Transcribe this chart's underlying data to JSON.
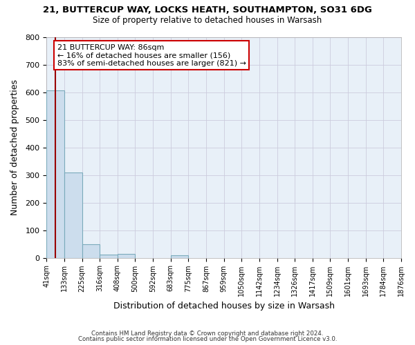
{
  "title_line1": "21, BUTTERCUP WAY, LOCKS HEATH, SOUTHAMPTON, SO31 6DG",
  "title_line2": "Size of property relative to detached houses in Warsash",
  "xlabel": "Distribution of detached houses by size in Warsash",
  "ylabel": "Number of detached properties",
  "bin_edges": [
    41,
    133,
    225,
    316,
    408,
    500,
    592,
    683,
    775,
    867,
    959,
    1050,
    1142,
    1234,
    1326,
    1417,
    1509,
    1601,
    1693,
    1784,
    1876
  ],
  "bin_labels": [
    "41sqm",
    "133sqm",
    "225sqm",
    "316sqm",
    "408sqm",
    "500sqm",
    "592sqm",
    "683sqm",
    "775sqm",
    "867sqm",
    "959sqm",
    "1050sqm",
    "1142sqm",
    "1234sqm",
    "1326sqm",
    "1417sqm",
    "1509sqm",
    "1601sqm",
    "1693sqm",
    "1784sqm",
    "1876sqm"
  ],
  "bar_heights": [
    607,
    310,
    48,
    12,
    13,
    0,
    0,
    8,
    0,
    0,
    0,
    0,
    0,
    0,
    0,
    0,
    0,
    0,
    0,
    0
  ],
  "bar_color": "#ccdded",
  "bar_edge_color": "#7aaabb",
  "property_size": 86,
  "vline_color": "#990000",
  "annotation_text": "21 BUTTERCUP WAY: 86sqm\n← 16% of detached houses are smaller (156)\n83% of semi-detached houses are larger (821) →",
  "annotation_box_color": "#ffffff",
  "annotation_box_edge": "#cc0000",
  "ylim": [
    0,
    800
  ],
  "yticks": [
    0,
    100,
    200,
    300,
    400,
    500,
    600,
    700,
    800
  ],
  "footer_line1": "Contains HM Land Registry data © Crown copyright and database right 2024.",
  "footer_line2": "Contains public sector information licensed under the Open Government Licence v3.0.",
  "fig_bg_color": "#ffffff",
  "plot_bg_color": "#e8f0f8"
}
